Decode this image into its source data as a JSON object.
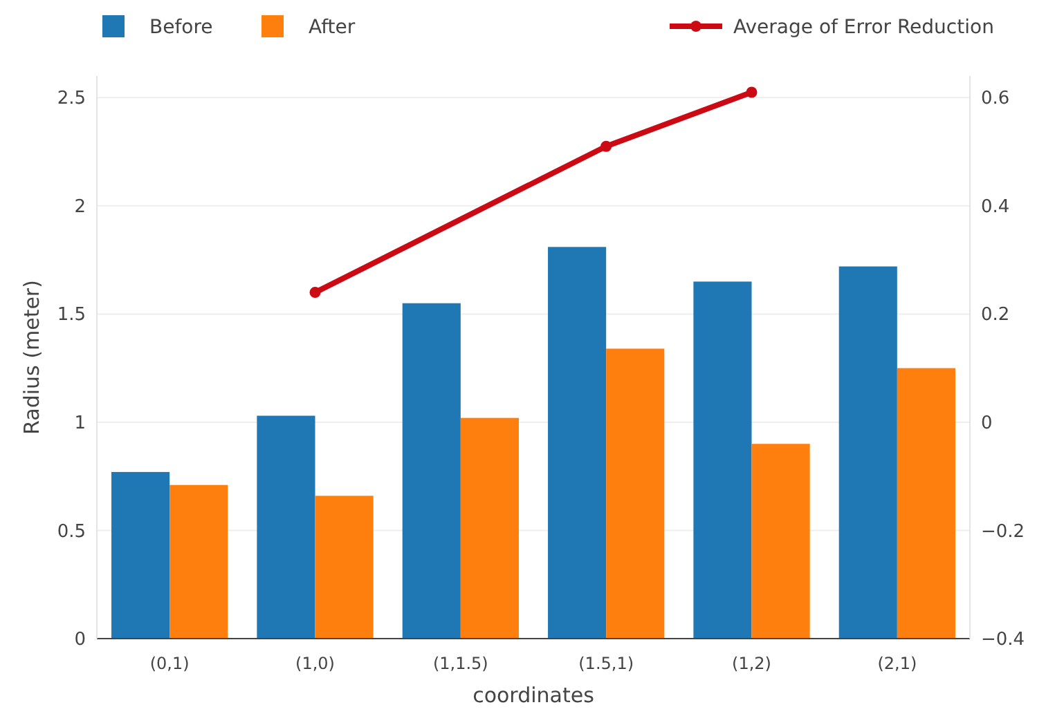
{
  "chart_data": {
    "type": "bar",
    "xlabel": "coordinates",
    "ylabel": "Radius (meter)",
    "categories": [
      "(0,1)",
      "(1,0)",
      "(1,1.5)",
      "(1.5,1)",
      "(1,2)",
      "(2,1)"
    ],
    "series": [
      {
        "name": "Before",
        "color": "#1f77b4",
        "values": [
          0.77,
          1.03,
          1.55,
          1.81,
          1.65,
          1.72
        ]
      },
      {
        "name": "After",
        "color": "#ff7f0e",
        "values": [
          0.71,
          0.66,
          1.02,
          1.34,
          0.9,
          1.25
        ]
      },
      {
        "name": "Average of Error Reduction",
        "type": "line",
        "axis": "y2",
        "color": "#cc0a14",
        "marker": "circle",
        "values": [
          null,
          0.24,
          null,
          0.51,
          0.61,
          null
        ]
      }
    ],
    "ylim": [
      0,
      2.6
    ],
    "yticks": [
      0,
      0.5,
      1,
      1.5,
      2,
      2.5
    ],
    "y2lim": [
      -0.4,
      0.64
    ],
    "y2ticks": [
      {
        "value": -0.4,
        "label": "−0.4"
      },
      {
        "value": -0.2,
        "label": "−0.2"
      },
      0,
      0.2,
      0.4,
      0.6
    ],
    "grid": "y",
    "legend": "top"
  }
}
